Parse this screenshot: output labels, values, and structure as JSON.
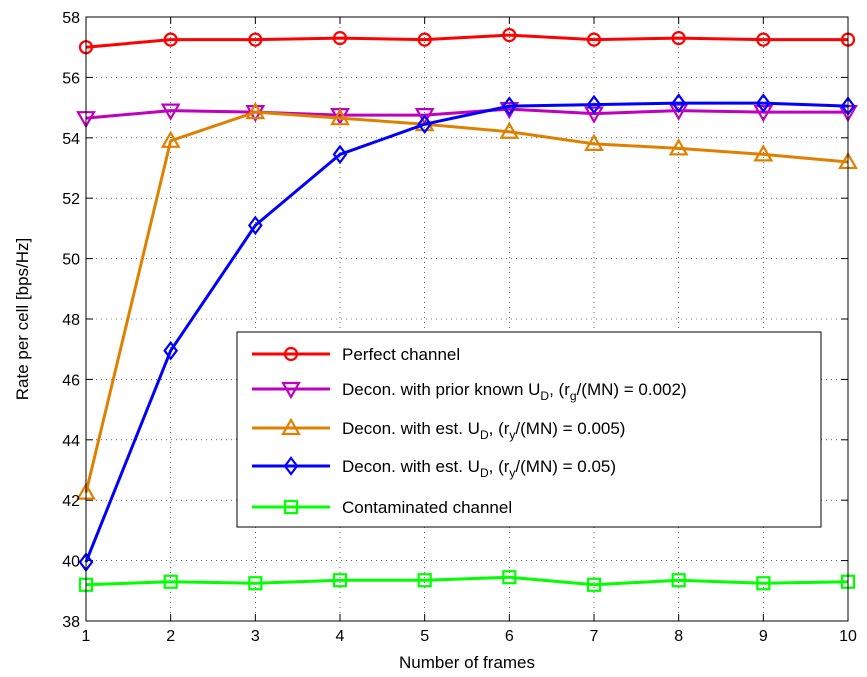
{
  "chart_data": {
    "type": "line",
    "xlabel": "Number of frames",
    "ylabel": "Rate per cell [bps/Hz]",
    "xlim": [
      1,
      10
    ],
    "ylim": [
      38,
      58
    ],
    "xticks": [
      1,
      2,
      3,
      4,
      5,
      6,
      7,
      8,
      9,
      10
    ],
    "yticks": [
      38,
      40,
      42,
      44,
      46,
      48,
      50,
      52,
      54,
      56,
      58
    ],
    "grid": true,
    "legend_position": "lower-right",
    "x": [
      1,
      2,
      3,
      4,
      5,
      6,
      7,
      8,
      9,
      10
    ],
    "series": [
      {
        "name": "Perfect channel",
        "legend": [
          {
            "t": "Perfect channel"
          }
        ],
        "color": "#ff0000",
        "marker": "circle",
        "values": [
          57.0,
          57.25,
          57.25,
          57.3,
          57.25,
          57.4,
          57.25,
          57.3,
          57.25,
          57.25
        ]
      },
      {
        "name": "Decon. with prior known U_D, (r_g/(MN) = 0.002)",
        "legend": [
          {
            "t": "Decon. with prior known U"
          },
          {
            "t": "D",
            "sub": true
          },
          {
            "t": ", (r"
          },
          {
            "t": "g",
            "sub": true
          },
          {
            "t": "/(MN) = 0.002)"
          }
        ],
        "color": "#bf00bf",
        "marker": "triangle-down",
        "values": [
          54.65,
          54.9,
          54.85,
          54.75,
          54.75,
          54.95,
          54.8,
          54.9,
          54.85,
          54.85
        ]
      },
      {
        "name": "Decon. with est. U_D, (r_y/(MN) = 0.005)",
        "legend": [
          {
            "t": "Decon. with est. U"
          },
          {
            "t": "D",
            "sub": true
          },
          {
            "t": ", (r"
          },
          {
            "t": "y",
            "sub": true
          },
          {
            "t": "/(MN) = 0.005)"
          }
        ],
        "color": "#e08000",
        "marker": "triangle-up",
        "values": [
          42.25,
          53.9,
          54.85,
          54.65,
          54.45,
          54.2,
          53.8,
          53.65,
          53.45,
          53.2
        ]
      },
      {
        "name": "Decon. with est. U_D, (r_y/(MN) = 0.05)",
        "legend": [
          {
            "t": "Decon. with est. U"
          },
          {
            "t": "D",
            "sub": true
          },
          {
            "t": ", (r"
          },
          {
            "t": "y",
            "sub": true
          },
          {
            "t": "/(MN) = 0.05)"
          }
        ],
        "color": "#0000ff",
        "marker": "diamond",
        "values": [
          39.95,
          46.95,
          51.1,
          53.45,
          54.45,
          55.05,
          55.1,
          55.15,
          55.15,
          55.05
        ]
      },
      {
        "name": "Contaminated channel",
        "legend": [
          {
            "t": "Contaminated channel"
          }
        ],
        "color": "#00ff00",
        "marker": "square",
        "values": [
          39.2,
          39.3,
          39.25,
          39.35,
          39.35,
          39.45,
          39.2,
          39.35,
          39.25,
          39.3
        ]
      }
    ]
  }
}
